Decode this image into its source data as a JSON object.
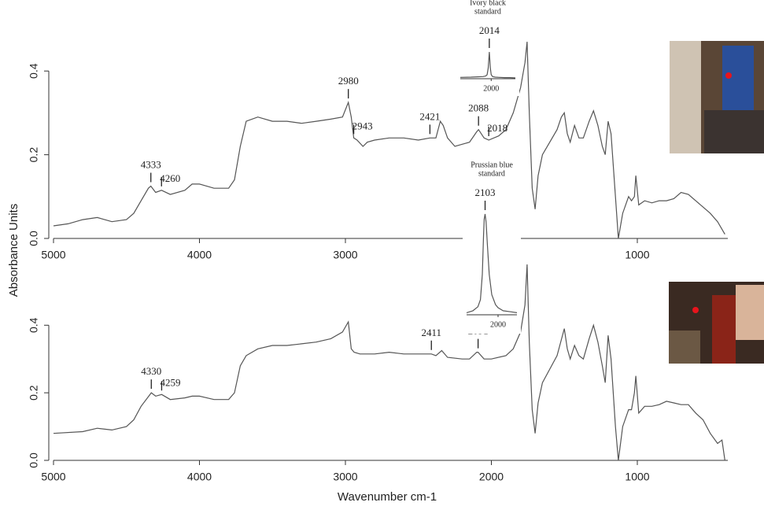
{
  "chart_data": [
    {
      "type": "line",
      "ylabel": "Absorbance Units",
      "xlim": [
        5000,
        380
      ],
      "xticks": [
        5000,
        4000,
        3000,
        2000,
        1000
      ],
      "ylim": [
        0,
        0.47
      ],
      "yticks": [
        {
          "value": 0,
          "label": "0.0"
        },
        0.2,
        0.4
      ],
      "x": [
        5000,
        4900,
        4800,
        4700,
        4600,
        4500,
        4450,
        4400,
        4350,
        4333,
        4300,
        4260,
        4200,
        4100,
        4050,
        4000,
        3900,
        3800,
        3760,
        3720,
        3680,
        3600,
        3500,
        3400,
        3300,
        3200,
        3100,
        3020,
        2980,
        2960,
        2943,
        2920,
        2880,
        2850,
        2800,
        2700,
        2600,
        2500,
        2421,
        2380,
        2350,
        2330,
        2300,
        2250,
        2200,
        2150,
        2100,
        2088,
        2050,
        2018,
        1950,
        1900,
        1850,
        1800,
        1770,
        1755,
        1740,
        1720,
        1700,
        1680,
        1650,
        1600,
        1550,
        1520,
        1500,
        1480,
        1460,
        1430,
        1400,
        1370,
        1330,
        1300,
        1270,
        1240,
        1220,
        1200,
        1180,
        1150,
        1130,
        1100,
        1060,
        1040,
        1020,
        1010,
        990,
        950,
        900,
        850,
        800,
        750,
        700,
        650,
        600,
        550,
        500,
        450,
        400
      ],
      "series": [
        {
          "color": "#555555",
          "values": [
            0.03,
            0.035,
            0.045,
            0.05,
            0.04,
            0.045,
            0.06,
            0.09,
            0.12,
            0.125,
            0.11,
            0.115,
            0.105,
            0.115,
            0.13,
            0.13,
            0.12,
            0.12,
            0.14,
            0.22,
            0.28,
            0.29,
            0.28,
            0.28,
            0.275,
            0.28,
            0.285,
            0.29,
            0.325,
            0.29,
            0.24,
            0.235,
            0.22,
            0.23,
            0.235,
            0.24,
            0.24,
            0.235,
            0.24,
            0.24,
            0.28,
            0.27,
            0.24,
            0.22,
            0.225,
            0.23,
            0.255,
            0.26,
            0.24,
            0.235,
            0.245,
            0.26,
            0.3,
            0.36,
            0.42,
            0.47,
            0.3,
            0.12,
            0.07,
            0.15,
            0.2,
            0.23,
            0.26,
            0.29,
            0.3,
            0.25,
            0.23,
            0.27,
            0.24,
            0.24,
            0.28,
            0.305,
            0.27,
            0.22,
            0.2,
            0.28,
            0.25,
            0.1,
            0.0,
            0.06,
            0.1,
            0.09,
            0.1,
            0.15,
            0.08,
            0.09,
            0.085,
            0.09,
            0.09,
            0.095,
            0.11,
            0.105,
            0.09,
            0.075,
            0.06,
            0.04,
            0.01
          ]
        }
      ],
      "annotations": [
        {
          "text": "4333",
          "x": 4333
        },
        {
          "text": "4260",
          "x": 4260
        },
        {
          "text": "2980",
          "x": 2980
        },
        {
          "text": "2943",
          "x": 2943
        },
        {
          "text": "2421",
          "x": 2421
        },
        {
          "text": "2088",
          "x": 2088
        },
        {
          "text": "2018",
          "x": 2018
        }
      ]
    },
    {
      "type": "line",
      "xlabel": "Wavenumber cm-1",
      "xlim": [
        5000,
        380
      ],
      "xticks": [
        5000,
        4000,
        3000,
        2000,
        1000
      ],
      "ylim": [
        0,
        0.58
      ],
      "yticks": [
        {
          "value": 0,
          "label": "0.0"
        },
        0.2,
        0.4
      ],
      "x": [
        5000,
        4800,
        4700,
        4600,
        4500,
        4450,
        4400,
        4330,
        4300,
        4259,
        4200,
        4100,
        4050,
        4000,
        3900,
        3800,
        3760,
        3720,
        3680,
        3600,
        3500,
        3400,
        3300,
        3200,
        3100,
        3020,
        2980,
        2960,
        2940,
        2900,
        2800,
        2700,
        2600,
        2500,
        2411,
        2380,
        2340,
        2300,
        2200,
        2150,
        2100,
        2091,
        2050,
        2000,
        1900,
        1850,
        1800,
        1770,
        1755,
        1740,
        1720,
        1700,
        1680,
        1650,
        1600,
        1550,
        1500,
        1480,
        1460,
        1430,
        1400,
        1370,
        1330,
        1300,
        1270,
        1240,
        1220,
        1200,
        1180,
        1150,
        1130,
        1100,
        1060,
        1040,
        1020,
        1010,
        990,
        950,
        900,
        850,
        800,
        750,
        700,
        650,
        600,
        550,
        500,
        450,
        420,
        400
      ],
      "series": [
        {
          "color": "#555555",
          "values": [
            0.08,
            0.085,
            0.095,
            0.09,
            0.1,
            0.12,
            0.16,
            0.2,
            0.19,
            0.195,
            0.18,
            0.185,
            0.19,
            0.19,
            0.18,
            0.18,
            0.2,
            0.28,
            0.31,
            0.33,
            0.34,
            0.34,
            0.345,
            0.35,
            0.36,
            0.38,
            0.41,
            0.33,
            0.32,
            0.315,
            0.315,
            0.32,
            0.315,
            0.315,
            0.315,
            0.31,
            0.325,
            0.305,
            0.3,
            0.3,
            0.32,
            0.32,
            0.3,
            0.3,
            0.31,
            0.33,
            0.38,
            0.46,
            0.58,
            0.35,
            0.15,
            0.08,
            0.17,
            0.23,
            0.27,
            0.31,
            0.39,
            0.33,
            0.3,
            0.34,
            0.31,
            0.3,
            0.36,
            0.4,
            0.35,
            0.28,
            0.23,
            0.37,
            0.3,
            0.1,
            0.0,
            0.1,
            0.15,
            0.15,
            0.2,
            0.25,
            0.14,
            0.16,
            0.16,
            0.165,
            0.175,
            0.17,
            0.165,
            0.165,
            0.14,
            0.12,
            0.08,
            0.05,
            0.06,
            0.0
          ]
        }
      ],
      "annotations": [
        {
          "text": "4330",
          "x": 4330
        },
        {
          "text": "4259",
          "x": 4259
        },
        {
          "text": "2411",
          "x": 2411
        },
        {
          "text": "2091",
          "x": 2091
        }
      ]
    },
    {
      "type": "line",
      "title": [
        "Ivory black",
        "standard"
      ],
      "xlim": [
        2230,
        1820
      ],
      "xticks": [
        2000
      ],
      "ylim": [
        0,
        1
      ],
      "x": [
        2230,
        2150,
        2100,
        2060,
        2040,
        2030,
        2022,
        2014,
        2006,
        2000,
        1990,
        1970,
        1940,
        1900,
        1860,
        1820
      ],
      "series": [
        {
          "color": "#555555",
          "values": [
            0.05,
            0.06,
            0.07,
            0.08,
            0.1,
            0.15,
            0.4,
            1.0,
            0.4,
            0.15,
            0.08,
            0.06,
            0.05,
            0.04,
            0.04,
            0.03
          ]
        }
      ],
      "annotations": [
        {
          "text": "2014",
          "x": 2014
        }
      ]
    },
    {
      "type": "line",
      "title": [
        "Prussian blue",
        "standard"
      ],
      "xlim": [
        2250,
        1850
      ],
      "xticks": [
        2000
      ],
      "ylim": [
        0,
        1
      ],
      "x": [
        2250,
        2200,
        2160,
        2140,
        2125,
        2115,
        2110,
        2103,
        2095,
        2085,
        2070,
        2050,
        2020,
        2000,
        1960,
        1900,
        1850
      ],
      "series": [
        {
          "color": "#555555",
          "values": [
            0.02,
            0.04,
            0.08,
            0.15,
            0.4,
            0.8,
            0.95,
            1.0,
            0.92,
            0.7,
            0.4,
            0.2,
            0.1,
            0.07,
            0.04,
            0.03,
            0.02
          ]
        }
      ],
      "annotations": [
        {
          "text": "2103",
          "x": 2103
        }
      ]
    }
  ]
}
